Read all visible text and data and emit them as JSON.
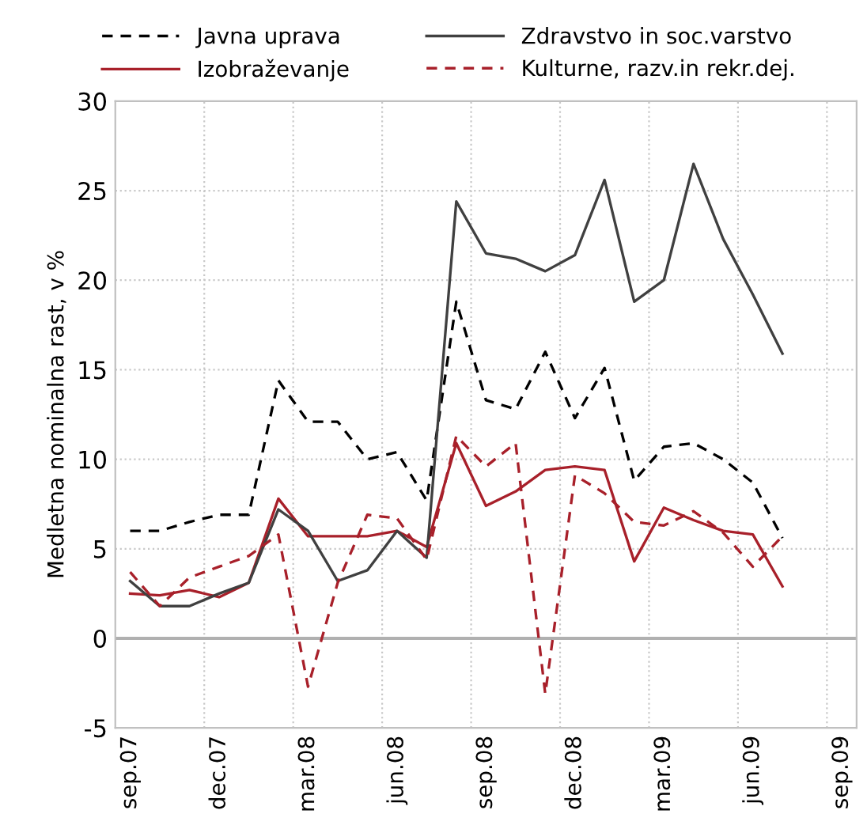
{
  "chart_data": {
    "type": "line",
    "ylabel": "Medletna nominalna rast, v %",
    "categories": [
      "sep.07",
      null,
      null,
      "dec.07",
      null,
      null,
      "mar.08",
      null,
      null,
      "jun.08",
      null,
      null,
      "sep.08",
      null,
      null,
      "dec.08",
      null,
      null,
      "mar.09",
      null,
      null,
      "jun.09",
      null,
      null,
      "sep.09"
    ],
    "series": [
      {
        "name": "Javna uprava",
        "color": "#000000",
        "line_style": "dashed",
        "values": [
          6.0,
          6.0,
          6.5,
          6.9,
          6.9,
          14.4,
          12.1,
          12.1,
          10.0,
          10.4,
          7.7,
          18.8,
          13.3,
          12.8,
          16.0,
          12.3,
          15.1,
          8.8,
          10.7,
          10.9,
          10.0,
          8.7,
          5.6,
          null,
          null
        ]
      },
      {
        "name": "Izobraževanje",
        "color": "#a8202a",
        "line_style": "solid",
        "values": [
          2.5,
          2.4,
          2.7,
          2.3,
          3.1,
          7.8,
          5.7,
          5.7,
          5.7,
          6.0,
          5.1,
          10.9,
          7.4,
          8.2,
          9.4,
          9.6,
          9.4,
          4.3,
          7.3,
          6.6,
          6.0,
          5.8,
          2.9,
          null,
          null
        ]
      },
      {
        "name": "Zdravstvo in soc.varstvo",
        "color": "#404040",
        "line_style": "solid",
        "values": [
          3.2,
          1.8,
          1.8,
          2.5,
          3.1,
          7.2,
          6.0,
          3.2,
          3.8,
          6.0,
          4.5,
          24.4,
          21.5,
          21.2,
          20.5,
          21.4,
          25.6,
          18.8,
          20.0,
          26.5,
          22.3,
          19.2,
          15.9,
          null,
          null
        ]
      },
      {
        "name": "Kulturne, razv.in rekr.dej.",
        "color": "#a8202a",
        "line_style": "dashed",
        "values": [
          3.7,
          1.8,
          3.4,
          4.0,
          4.6,
          5.8,
          -2.7,
          3.1,
          6.9,
          6.7,
          4.4,
          11.3,
          9.6,
          10.9,
          -3.1,
          9.1,
          8.1,
          6.5,
          6.3,
          7.1,
          5.9,
          4.0,
          5.7,
          null,
          null
        ]
      }
    ],
    "ylim": [
      -5,
      30
    ],
    "yticks": [
      -5,
      0,
      5,
      10,
      15,
      20,
      25,
      30
    ],
    "ref_lines": [
      {
        "axis": "y",
        "value": 0,
        "color": "#b0b0b0"
      }
    ],
    "grid": true,
    "legend": "top",
    "marker": "none"
  }
}
